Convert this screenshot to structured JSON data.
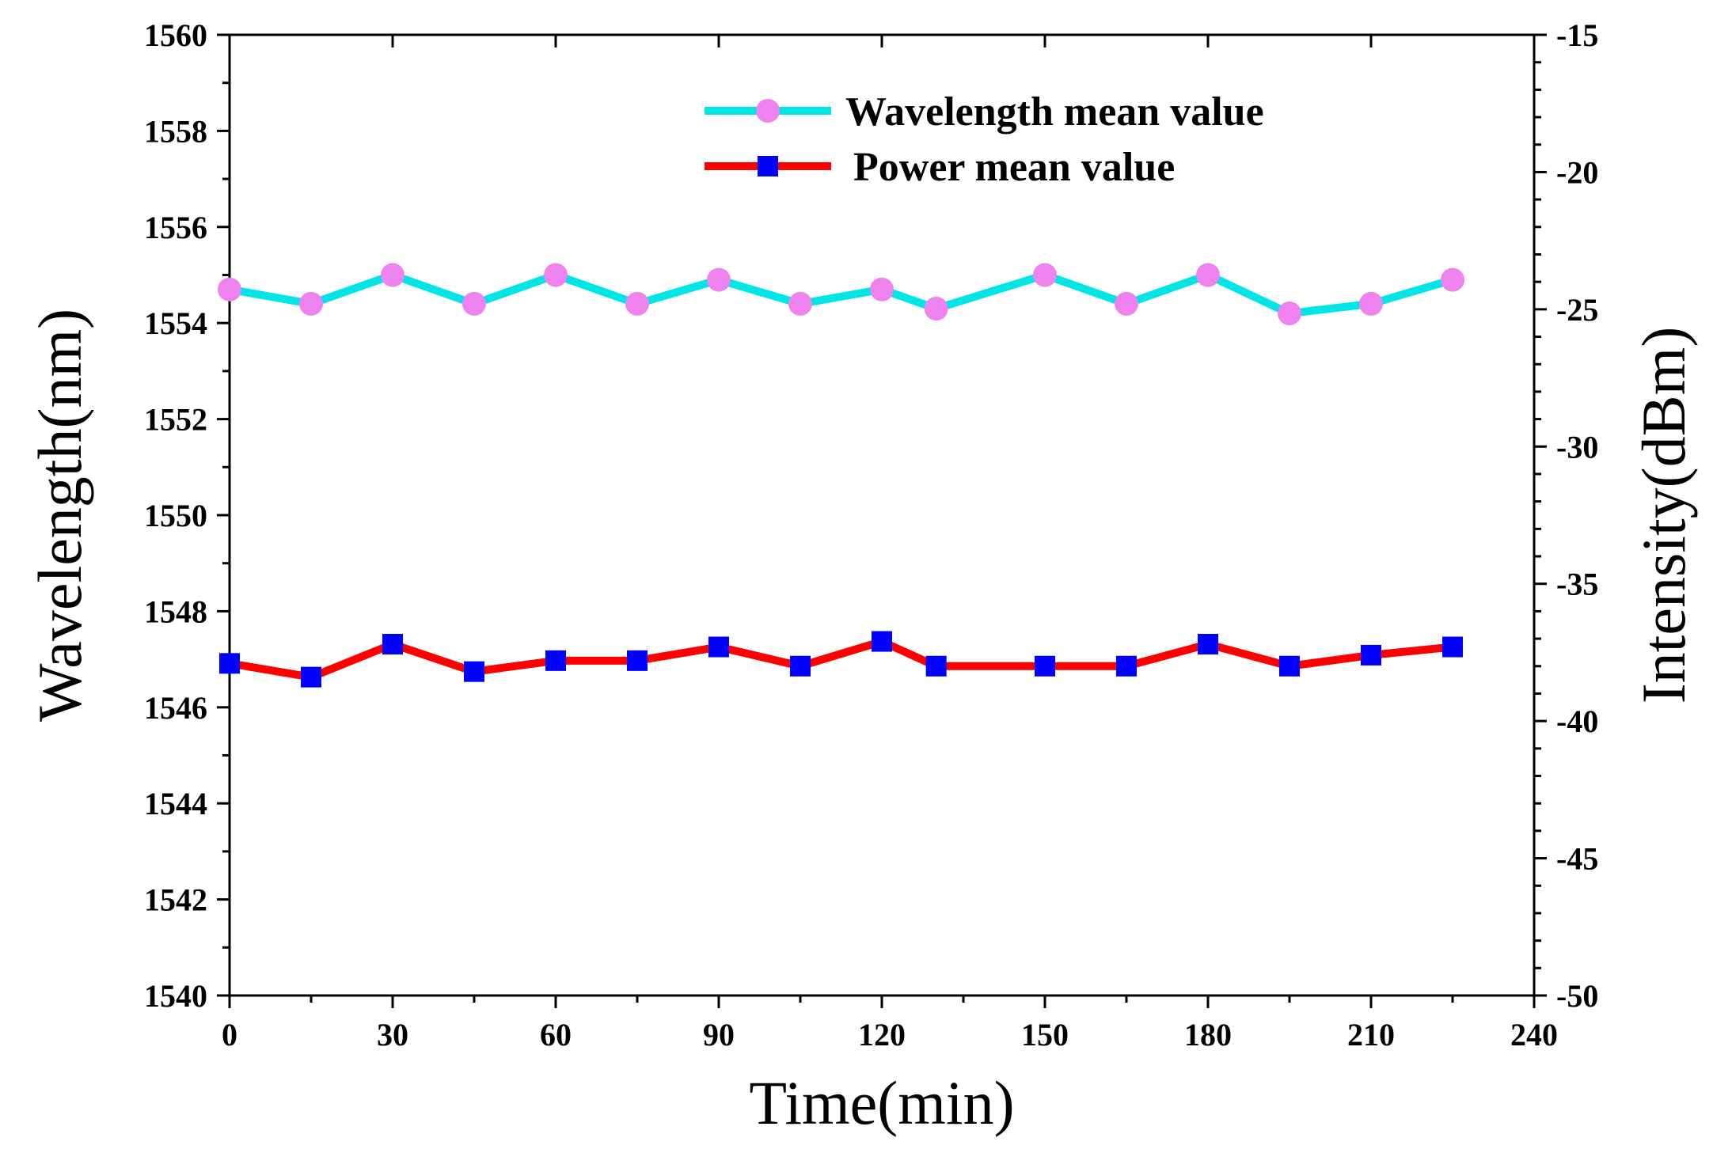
{
  "chart_data": {
    "type": "line",
    "title": "",
    "xlabel": "Time(min)",
    "ylabel_left": "Wavelength(nm)",
    "ylabel_right": "Intensity(dBm)",
    "xlim": [
      0,
      240
    ],
    "ylim_left": [
      1540,
      1560
    ],
    "ylim_right": [
      -50,
      -15
    ],
    "x_ticks": [
      "0",
      "30",
      "60",
      "90",
      "120",
      "150",
      "180",
      "210",
      "240"
    ],
    "y_left_ticks": [
      "1540",
      "1542",
      "1544",
      "1546",
      "1548",
      "1550",
      "1552",
      "1554",
      "1556",
      "1558",
      "1560"
    ],
    "y_right_ticks": [
      "-50",
      "-45",
      "-40",
      "-35",
      "-30",
      "-25",
      "-20",
      "-15"
    ],
    "grid": false,
    "legend_position": "top-right",
    "series": [
      {
        "name": "Wavelength mean value",
        "axis": "left",
        "line_color": "#00e5e5",
        "marker": "circle",
        "marker_color": "#ee82ee",
        "x": [
          0,
          15,
          30,
          45,
          60,
          75,
          90,
          105,
          120,
          130,
          150,
          165,
          180,
          195,
          210,
          225
        ],
        "y": [
          1554.7,
          1554.4,
          1555.0,
          1554.4,
          1555.0,
          1554.4,
          1554.9,
          1554.4,
          1554.7,
          1554.3,
          1555.0,
          1554.4,
          1555.0,
          1554.2,
          1554.4,
          1554.9
        ]
      },
      {
        "name": "Power mean value",
        "axis": "right",
        "line_color": "#ff0000",
        "marker": "square",
        "marker_color": "#0000ff",
        "x": [
          0,
          15,
          30,
          45,
          60,
          75,
          90,
          105,
          120,
          130,
          150,
          165,
          180,
          195,
          210,
          225
        ],
        "y": [
          -37.9,
          -38.4,
          -37.2,
          -38.2,
          -37.8,
          -37.8,
          -37.3,
          -38.0,
          -37.1,
          -38.0,
          -38.0,
          -38.0,
          -37.2,
          -38.0,
          -37.6,
          -37.3
        ]
      }
    ]
  }
}
